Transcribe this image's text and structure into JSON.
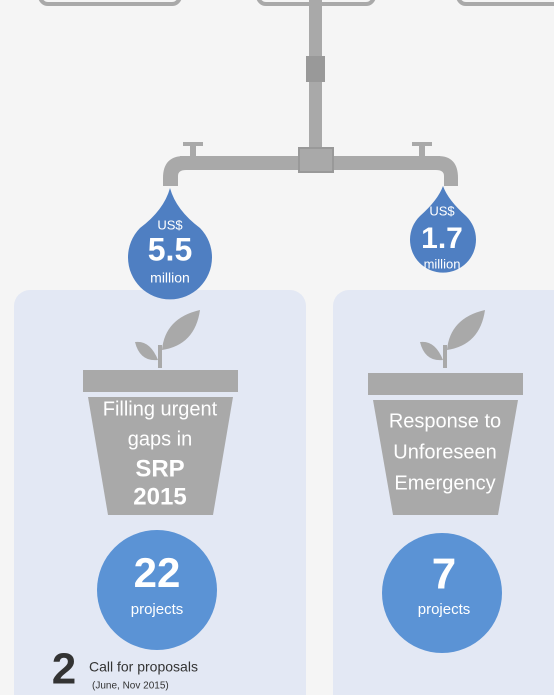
{
  "drops": [
    {
      "currency": "US$",
      "amount": "5.5",
      "unit": "million"
    },
    {
      "currency": "US$",
      "amount": "1.7",
      "unit": "million"
    }
  ],
  "pots": [
    {
      "lines": [
        "Filling urgent",
        "gaps in"
      ],
      "bold_lines": [
        "SRP",
        "2015"
      ]
    },
    {
      "lines": [
        "Response to",
        "Unforeseen",
        "Emergency"
      ]
    }
  ],
  "circles": [
    {
      "count": "22",
      "unit": "projects"
    },
    {
      "count": "7",
      "unit": "projects"
    }
  ],
  "footer": {
    "number": "2",
    "text": "Call for proposals",
    "note": "(June, Nov 2015)"
  }
}
